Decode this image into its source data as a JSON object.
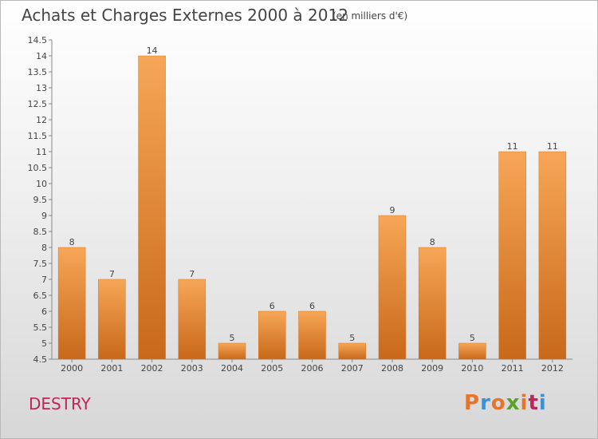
{
  "header": {
    "title": "Achats et Charges Externes 2000 à 2012",
    "subtitle": "(en milliers d'€)"
  },
  "footer": {
    "place": "DESTRY",
    "brand": "Proxiti",
    "brand_colors": [
      "#e8742a",
      "#3f8fd2",
      "#e8742a",
      "#5aa02c",
      "#e8742a",
      "#c0245a",
      "#3f8fd2"
    ]
  },
  "chart_data": {
    "type": "bar",
    "categories": [
      "2000",
      "2001",
      "2002",
      "2003",
      "2004",
      "2005",
      "2006",
      "2007",
      "2008",
      "2009",
      "2010",
      "2011",
      "2012"
    ],
    "values": [
      8,
      7,
      14,
      7,
      5,
      6,
      6,
      5,
      9,
      8,
      5,
      11,
      11
    ],
    "data_labels": [
      "8",
      "7",
      "14",
      "7",
      "5",
      "6",
      "6",
      "5",
      "9",
      "8",
      "5",
      "11",
      "11"
    ],
    "ylim": [
      4.5,
      14.5
    ],
    "yticks": [
      4.5,
      5,
      5.5,
      6,
      6.5,
      7,
      7.5,
      8,
      8.5,
      9,
      9.5,
      10,
      10.5,
      11,
      11.5,
      12,
      12.5,
      13,
      13.5,
      14,
      14.5
    ],
    "ytick_labels": [
      "4.5",
      "5",
      "5.5",
      "6",
      "6.5",
      "7",
      "7.5",
      "8",
      "8.5",
      "9",
      "9.5",
      "10",
      "10.5",
      "11",
      "11.5",
      "12",
      "12.5",
      "13",
      "13.5",
      "14",
      "14.5"
    ],
    "bar_color": "#e8842c",
    "grid": false,
    "legend": "none"
  }
}
